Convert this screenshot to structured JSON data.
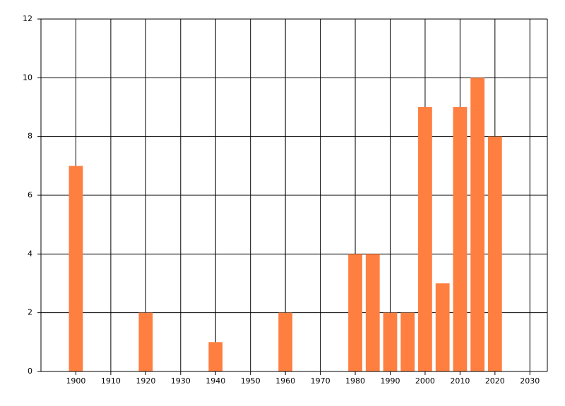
{
  "chart_data": {
    "type": "bar",
    "x": [
      1900,
      1920,
      1940,
      1960,
      1980,
      1985,
      1990,
      1995,
      2000,
      2005,
      2010,
      2015,
      2020
    ],
    "values": [
      7,
      2,
      1,
      2,
      4,
      4,
      2,
      2,
      9,
      3,
      9,
      10,
      8
    ],
    "color": "#ff7f40",
    "xlim": [
      1890,
      2035
    ],
    "xticks": [
      1900,
      1910,
      1920,
      1930,
      1940,
      1950,
      1960,
      1970,
      1980,
      1990,
      2000,
      2010,
      2020,
      2030
    ],
    "ylim": [
      0,
      12
    ],
    "yticks": [
      0,
      2,
      4,
      6,
      8,
      10,
      12
    ],
    "grid": true
  }
}
